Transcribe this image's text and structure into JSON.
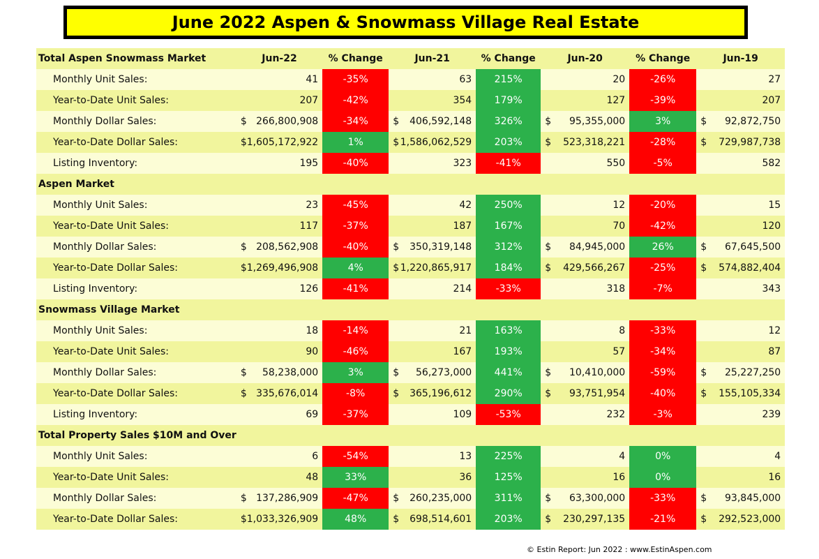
{
  "title": "June 2022 Aspen & Snowmass Village Real Estate",
  "colors": {
    "red": "#ff0000",
    "green": "#2cb14b",
    "row_dark": "#f1f59d",
    "row_light": "#fcfdd6",
    "title_bg": "#ffff00"
  },
  "header": {
    "section": "Total Aspen Snowmass Market",
    "columns": [
      "Jun-22",
      "% Change",
      "Jun-21",
      "% Change",
      "Jun-20",
      "% Change",
      "Jun-19"
    ]
  },
  "sections": [
    {
      "name": "Total Aspen Snowmass Market",
      "rows": [
        {
          "label": "Monthly Unit Sales:",
          "currency": false,
          "v1": "41",
          "p1": "-35%",
          "c1": "red",
          "v2": "63",
          "p2": "215%",
          "c2": "green",
          "v3": "20",
          "p3": "-26%",
          "c3": "red",
          "v4": "27"
        },
        {
          "label": "Year-to-Date Unit Sales:",
          "currency": false,
          "v1": "207",
          "p1": "-42%",
          "c1": "red",
          "v2": "354",
          "p2": "179%",
          "c2": "green",
          "v3": "127",
          "p3": "-39%",
          "c3": "red",
          "v4": "207"
        },
        {
          "label": "Monthly Dollar Sales:",
          "currency": true,
          "v1": "266,800,908",
          "p1": "-34%",
          "c1": "red",
          "v2": "406,592,148",
          "p2": "326%",
          "c2": "green",
          "v3": "95,355,000",
          "p3": "3%",
          "c3": "green",
          "v4": "92,872,750"
        },
        {
          "label": "Year-to-Date Dollar Sales:",
          "currency": true,
          "v1": "1,605,172,922",
          "p1": "1%",
          "c1": "green",
          "v2": "1,586,062,529",
          "p2": "203%",
          "c2": "green",
          "v3": "523,318,221",
          "p3": "-28%",
          "c3": "red",
          "v4": "729,987,738"
        },
        {
          "label": "Listing Inventory:",
          "currency": false,
          "v1": "195",
          "p1": "-40%",
          "c1": "red",
          "v2": "323",
          "p2": "-41%",
          "c2": "red",
          "v3": "550",
          "p3": "-5%",
          "c3": "red",
          "v4": "582"
        }
      ]
    },
    {
      "name": "Aspen Market",
      "rows": [
        {
          "label": "Monthly Unit Sales:",
          "currency": false,
          "v1": "23",
          "p1": "-45%",
          "c1": "red",
          "v2": "42",
          "p2": "250%",
          "c2": "green",
          "v3": "12",
          "p3": "-20%",
          "c3": "red",
          "v4": "15"
        },
        {
          "label": "Year-to-Date Unit Sales:",
          "currency": false,
          "v1": "117",
          "p1": "-37%",
          "c1": "red",
          "v2": "187",
          "p2": "167%",
          "c2": "green",
          "v3": "70",
          "p3": "-42%",
          "c3": "red",
          "v4": "120"
        },
        {
          "label": "Monthly Dollar Sales:",
          "currency": true,
          "v1": "208,562,908",
          "p1": "-40%",
          "c1": "red",
          "v2": "350,319,148",
          "p2": "312%",
          "c2": "green",
          "v3": "84,945,000",
          "p3": "26%",
          "c3": "green",
          "v4": "67,645,500"
        },
        {
          "label": "Year-to-Date Dollar Sales:",
          "currency": true,
          "v1": "1,269,496,908",
          "p1": "4%",
          "c1": "green",
          "v2": "1,220,865,917",
          "p2": "184%",
          "c2": "green",
          "v3": "429,566,267",
          "p3": "-25%",
          "c3": "red",
          "v4": "574,882,404"
        },
        {
          "label": "Listing Inventory:",
          "currency": false,
          "v1": "126",
          "p1": "-41%",
          "c1": "red",
          "v2": "214",
          "p2": "-33%",
          "c2": "red",
          "v3": "318",
          "p3": "-7%",
          "c3": "red",
          "v4": "343"
        }
      ]
    },
    {
      "name": "Snowmass Village Market",
      "rows": [
        {
          "label": "Monthly Unit Sales:",
          "currency": false,
          "v1": "18",
          "p1": "-14%",
          "c1": "red",
          "v2": "21",
          "p2": "163%",
          "c2": "green",
          "v3": "8",
          "p3": "-33%",
          "c3": "red",
          "v4": "12"
        },
        {
          "label": "Year-to-Date Unit Sales:",
          "currency": false,
          "v1": "90",
          "p1": "-46%",
          "c1": "red",
          "v2": "167",
          "p2": "193%",
          "c2": "green",
          "v3": "57",
          "p3": "-34%",
          "c3": "red",
          "v4": "87"
        },
        {
          "label": "Monthly Dollar Sales:",
          "currency": true,
          "v1": "58,238,000",
          "p1": "3%",
          "c1": "green",
          "v2": "56,273,000",
          "p2": "441%",
          "c2": "green",
          "v3": "10,410,000",
          "p3": "-59%",
          "c3": "red",
          "v4": "25,227,250"
        },
        {
          "label": "Year-to-Date Dollar Sales:",
          "currency": true,
          "v1": "335,676,014",
          "p1": "-8%",
          "c1": "red",
          "v2": "365,196,612",
          "p2": "290%",
          "c2": "green",
          "v3": "93,751,954",
          "p3": "-40%",
          "c3": "red",
          "v4": "155,105,334"
        },
        {
          "label": "Listing Inventory:",
          "currency": false,
          "v1": "69",
          "p1": "-37%",
          "c1": "red",
          "v2": "109",
          "p2": "-53%",
          "c2": "red",
          "v3": "232",
          "p3": "-3%",
          "c3": "red",
          "v4": "239"
        }
      ]
    },
    {
      "name": "Total Property Sales $10M and Over",
      "rows": [
        {
          "label": "Monthly Unit Sales:",
          "currency": false,
          "v1": "6",
          "p1": "-54%",
          "c1": "red",
          "v2": "13",
          "p2": "225%",
          "c2": "green",
          "v3": "4",
          "p3": "0%",
          "c3": "green",
          "v4": "4"
        },
        {
          "label": "Year-to-Date Unit Sales:",
          "currency": false,
          "v1": "48",
          "p1": "33%",
          "c1": "green",
          "v2": "36",
          "p2": "125%",
          "c2": "green",
          "v3": "16",
          "p3": "0%",
          "c3": "green",
          "v4": "16"
        },
        {
          "label": "Monthly Dollar Sales:",
          "currency": true,
          "v1": "137,286,909",
          "p1": "-47%",
          "c1": "red",
          "v2": "260,235,000",
          "p2": "311%",
          "c2": "green",
          "v3": "63,300,000",
          "p3": "-33%",
          "c3": "red",
          "v4": "93,845,000"
        },
        {
          "label": "Year-to-Date Dollar Sales:",
          "currency": true,
          "v1": "1,033,326,909",
          "p1": "48%",
          "c1": "green",
          "v2": "698,514,601",
          "p2": "203%",
          "c2": "green",
          "v3": "230,297,135",
          "p3": "-21%",
          "c3": "red",
          "v4": "292,523,000"
        }
      ]
    }
  ],
  "currency_symbol": "$",
  "footer": "© Estin Report: Jun 2022 : www.EstinAspen.com"
}
